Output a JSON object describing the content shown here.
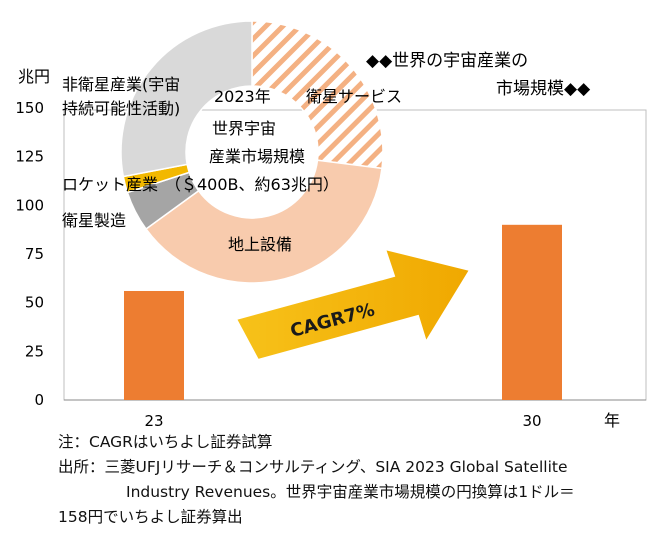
{
  "chart_data": [
    {
      "type": "bar",
      "ylabel": "兆円",
      "ylim": [
        0,
        150
      ],
      "yticks": [
        0,
        25,
        50,
        75,
        100,
        125,
        150
      ],
      "categories": [
        "23",
        "30"
      ],
      "values": [
        56,
        90
      ],
      "x_unit": "年",
      "bar_color": "#ED7D31",
      "title_line1": "◆◆世界の宇宙産業の",
      "title_line2": "市場規模◆◆",
      "arrow_label": "CAGR7%",
      "arrow_color": "#F5B800"
    },
    {
      "type": "pie",
      "center_line1": "世界宇宙",
      "center_line2": "産業市場規模",
      "center_year": "2023年",
      "center_total": "（＄400B、約63兆円）",
      "slices": [
        {
          "label": "衛星サービス",
          "value": 27,
          "color": "#F6C7A9",
          "hatched": true
        },
        {
          "label": "地上設備",
          "value": 38,
          "color": "#F8CBAD",
          "hatched": false
        },
        {
          "label": "衛星製造",
          "value": 5,
          "color": "#A5A5A5",
          "hatched": false
        },
        {
          "label": "ロケット産業",
          "value": 2,
          "color": "#F2B800",
          "hatched": false
        },
        {
          "label_line1": "非衛星産業(宇宙",
          "label_line2": "持続可能性活動)",
          "value": 28,
          "color": "#D9D9D9",
          "hatched": false
        }
      ]
    }
  ],
  "notes": {
    "line1": "注：CAGRはいちよし証券試算",
    "line2": "出所：三菱UFJリサーチ＆コンサルティング、SIA 2023 Global Satellite",
    "line3": "Industry Revenues。世界宇宙産業市場規模の円換算は1ドル＝",
    "line4": "158円でいちよし証券算出"
  }
}
